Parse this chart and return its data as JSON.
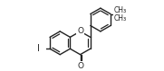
{
  "bg_color": "#ffffff",
  "line_color": "#222222",
  "lw": 1.0,
  "figsize": [
    1.81,
    0.79
  ],
  "dpi": 100,
  "xlim": [
    -0.15,
    1.1
  ],
  "ylim": [
    -0.05,
    0.95
  ]
}
